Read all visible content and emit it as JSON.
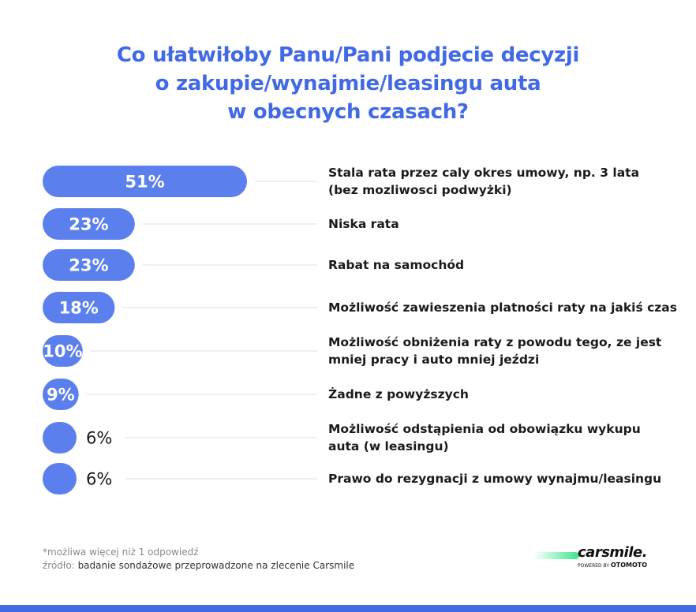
{
  "title_lines": [
    "Co ułatwiłoby Panu/Pani podjecie decyzji",
    "o zakupie/wynajmie/leasingu auta",
    "w obecnych czasach?"
  ],
  "footnote": {
    "line1": "*możliwa więcej niż 1 odpowiedź",
    "line2_prefix": "źródło:",
    "line2_text": "badanie sondażowe przeprowadzone na zlecenie Carsmile"
  },
  "logo": {
    "wordmark": "carsmile.",
    "powered_by": "POWERED BY",
    "partner": "OTOMOTO"
  },
  "colors": {
    "accent": "#4169e6",
    "bar": "#5b80ee",
    "connector": "#e3e3e3",
    "swoosh": "#3ce68c"
  },
  "chart_data": {
    "type": "bar",
    "orientation": "horizontal",
    "unit": "%",
    "categories": [
      [
        "Stala rata przez caly okres umowy, np. 3 lata",
        "(bez mozliwosci podwyżki)"
      ],
      [
        "Niska rata"
      ],
      [
        "Rabat na samochód"
      ],
      [
        "Możliwość zawieszenia platności raty na jakiś czas"
      ],
      [
        "Możliwość obniżenia raty z powodu tego, ze jest",
        "mniej pracy i auto mniej jeździ"
      ],
      [
        "Żadne z powyższych"
      ],
      [
        "Możliwość odstąpienia od obowiązku wykupu",
        "auta (w leasingu)"
      ],
      [
        "Prawo do rezygnacji z umowy wynajmu/leasingu"
      ]
    ],
    "values": [
      51,
      23,
      23,
      18,
      10,
      9,
      6,
      6
    ],
    "value_labels": [
      "51%",
      "23%",
      "23%",
      "18%",
      "10%",
      "9%",
      "6%",
      "6%"
    ],
    "xlim": [
      0,
      51
    ],
    "grid": false,
    "legend": "none"
  }
}
